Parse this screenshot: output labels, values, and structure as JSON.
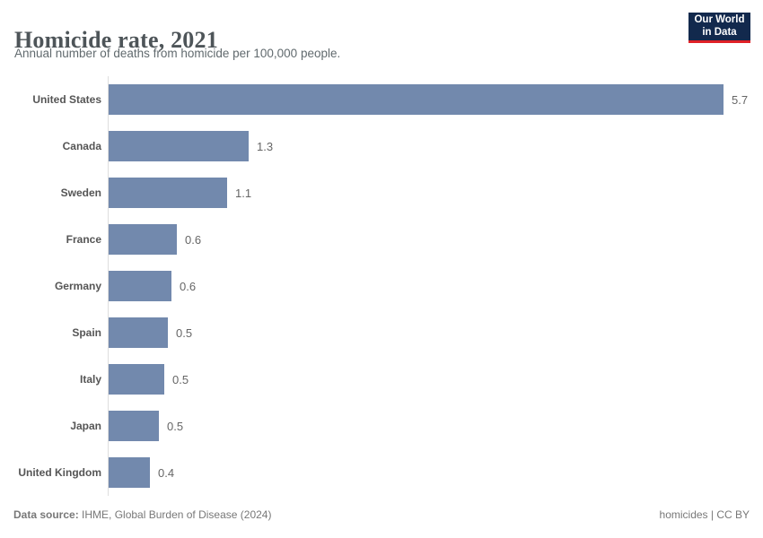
{
  "header": {
    "title": "Homicide rate, 2021",
    "subtitle": "Annual number of deaths from homicide per 100,000 people.",
    "logo": {
      "line1": "Our World",
      "line2": "in Data"
    }
  },
  "chart_data": {
    "type": "bar",
    "orientation": "horizontal",
    "title": "Homicide rate, 2021",
    "subtitle": "Annual number of deaths from homicide per 100,000 people.",
    "xlabel": "",
    "ylabel": "",
    "xlim": [
      0,
      5.7
    ],
    "grid": false,
    "legend": false,
    "categories": [
      "United States",
      "Canada",
      "Sweden",
      "France",
      "Germany",
      "Spain",
      "Italy",
      "Japan",
      "United Kingdom"
    ],
    "values": [
      5.7,
      1.3,
      1.1,
      0.6,
      0.6,
      0.5,
      0.5,
      0.5,
      0.4
    ],
    "value_labels": [
      "5.7",
      "1.3",
      "1.1",
      "0.6",
      "0.6",
      "0.5",
      "0.5",
      "0.5",
      "0.4"
    ],
    "bar_lengths_estimate": [
      5.7,
      1.3,
      1.1,
      0.63,
      0.58,
      0.55,
      0.52,
      0.47,
      0.38
    ]
  },
  "footer": {
    "source_label": "Data source:",
    "source_text": " IHME, Global Burden of Disease (2024)",
    "right_text": "homicides | CC BY"
  },
  "colors": {
    "bar": "#7289ad",
    "axis_line": "#dedede",
    "logo_bg": "#12294d",
    "logo_accent": "#e02127"
  }
}
